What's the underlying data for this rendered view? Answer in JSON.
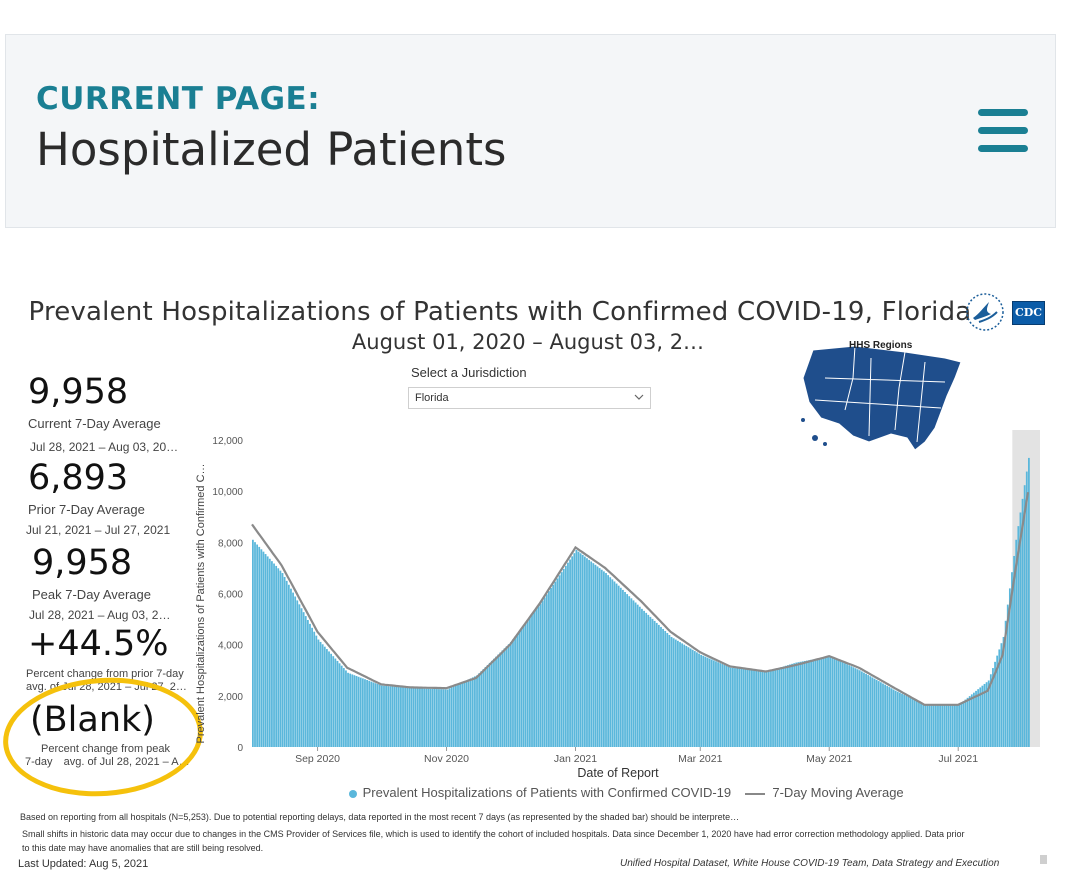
{
  "header": {
    "current_label": "CURRENT PAGE:",
    "page_title": "Hospitalized Patients",
    "menu_icon": "hamburger-menu-icon",
    "accent_color": "#1a7f93"
  },
  "dashboard": {
    "title": "Prevalent Hospitalizations of Patients with Confirmed COVID-19, Florida",
    "subtitle": "August 01, 2020 – August 03, 2…",
    "cdc_logo_text": "CDC",
    "hhs_logo": "hhs-eagle-icon",
    "jurisdiction": {
      "label": "Select a Jurisdiction",
      "value": "Florida"
    },
    "hhs_map_title": "HHS Regions",
    "stats": [
      {
        "value": "9,958",
        "label": "Current 7-Day Average",
        "range": "Jul 28, 2021 – Aug 03, 20…"
      },
      {
        "value": "6,893",
        "label": "Prior 7-Day Average",
        "range": "Jul 21, 2021 – Jul 27, 2021"
      },
      {
        "value": "9,958",
        "label": "Peak 7-Day Average",
        "range": "Jul 28, 2021 – Aug 03, 2…"
      },
      {
        "value": "+44.5%",
        "label": "Percent change from prior 7-day",
        "range": "avg. of Jul 28, 2021 – Jul 27, 2…"
      },
      {
        "value": "(Blank)",
        "label": "Percent change from peak",
        "range_prefix": "7-day",
        "range": "avg. of Jul 28, 2021 – A…"
      }
    ],
    "footnotes": {
      "reporting": "Based on reporting from all hospitals (N=5,253). Due to potential reporting delays, data reported in the most recent 7 days (as represented by the shaded bar) should be interprete…",
      "shifts_1": "Small shifts in historic data may occur due to changes in the CMS Provider of Services file, which is used to identify the cohort of included hospitals. Data since December 1, 2020 have had error correction methodology applied. Data prior",
      "shifts_2": "to this date may have anomalies that are still being resolved.",
      "last_updated": "Last Updated: Aug 5, 2021",
      "source": "Unified Hospital Dataset, White House COVID-19 Team, Data Strategy and Execution"
    },
    "legend": {
      "bars": "Prevalent Hospitalizations of Patients with Confirmed COVID-19",
      "line": "7-Day Moving Average"
    }
  },
  "chart_data": {
    "type": "bar",
    "title": "Prevalent Hospitalizations of Patients with Confirmed COVID-19, Florida",
    "xlabel": "Date of Report",
    "ylabel": "Prevalent Hospitalizations of Patients with Confirmed C…",
    "ylim": [
      0,
      12000
    ],
    "yticks": [
      0,
      2000,
      4000,
      6000,
      8000,
      10000,
      12000
    ],
    "ytick_labels": [
      "0",
      "2,000",
      "4,000",
      "6,000",
      "8,000",
      "10,000",
      "12,000"
    ],
    "xlim": [
      "2020-08-01",
      "2021-08-03"
    ],
    "xtick_labels": [
      "Sep 2020",
      "Nov 2020",
      "Jan 2021",
      "Mar 2021",
      "May 2021",
      "Jul 2021"
    ],
    "xtick_dates": [
      "2020-09-01",
      "2020-11-01",
      "2021-01-01",
      "2021-03-01",
      "2021-05-01",
      "2021-07-01"
    ],
    "shaded_range": [
      "2021-07-28",
      "2021-08-03"
    ],
    "bar_color": "#5ab7db",
    "line_color": "#8a8a8a",
    "shade_color": "#e3e3e3",
    "legend_position": "bottom",
    "grid": false,
    "series": [
      {
        "name": "Prevalent Hospitalizations of Patients with Confirmed COVID-19",
        "kind": "bar",
        "dates": [
          "2020-08-01",
          "2020-08-15",
          "2020-09-01",
          "2020-09-15",
          "2020-10-01",
          "2020-10-15",
          "2020-11-01",
          "2020-11-15",
          "2020-12-01",
          "2020-12-15",
          "2021-01-01",
          "2021-01-15",
          "2021-02-01",
          "2021-02-15",
          "2021-03-01",
          "2021-03-15",
          "2021-04-01",
          "2021-04-15",
          "2021-05-01",
          "2021-05-15",
          "2021-06-01",
          "2021-06-15",
          "2021-07-01",
          "2021-07-15",
          "2021-07-22",
          "2021-07-28",
          "2021-08-03"
        ],
        "values": [
          8100,
          6800,
          4200,
          2900,
          2400,
          2300,
          2250,
          2800,
          4100,
          5600,
          7700,
          6800,
          5400,
          4300,
          3600,
          3100,
          2950,
          3300,
          3550,
          3000,
          2200,
          1650,
          1650,
          2600,
          4300,
          8100,
          11300
        ]
      },
      {
        "name": "7-Day Moving Average",
        "kind": "line",
        "dates": [
          "2020-08-01",
          "2020-08-15",
          "2020-09-01",
          "2020-09-15",
          "2020-10-01",
          "2020-10-15",
          "2020-11-01",
          "2020-11-15",
          "2020-12-01",
          "2020-12-15",
          "2021-01-01",
          "2021-01-15",
          "2021-02-01",
          "2021-02-15",
          "2021-03-01",
          "2021-03-15",
          "2021-04-01",
          "2021-04-15",
          "2021-05-01",
          "2021-05-15",
          "2021-06-01",
          "2021-06-15",
          "2021-07-01",
          "2021-07-15",
          "2021-07-22",
          "2021-07-28",
          "2021-08-03"
        ],
        "values": [
          8700,
          7100,
          4500,
          3100,
          2450,
          2330,
          2300,
          2700,
          4000,
          5600,
          7800,
          7000,
          5700,
          4500,
          3700,
          3150,
          2950,
          3200,
          3550,
          3100,
          2300,
          1650,
          1650,
          2200,
          3600,
          6893,
          9958
        ]
      }
    ]
  }
}
